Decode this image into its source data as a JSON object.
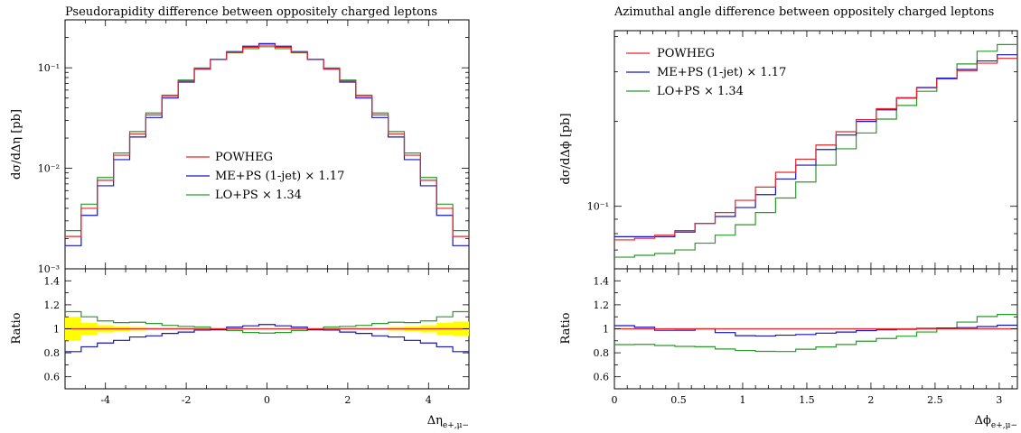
{
  "chart_data": [
    {
      "type": "line",
      "title": "Pseudorapidity difference between oppositely charged leptons",
      "ylabel": "dσ/dΔη [pb]",
      "xlabel": "Δη",
      "xlabel_sub": "e+,μ−",
      "ratio_ylabel": "Ratio",
      "xlim": [
        -5,
        5
      ],
      "ylim": [
        0.001,
        0.3
      ],
      "ylog": true,
      "ratio_ylim": [
        0.5,
        1.5
      ],
      "x_ticks": [
        -4,
        -2,
        0,
        2,
        4
      ],
      "x_tick_labels": [
        "-4",
        "-2",
        "0",
        "2",
        "4"
      ],
      "y_ticks": [
        0.001,
        0.01,
        0.1
      ],
      "y_tick_labels": [
        "10⁻³",
        "10⁻²",
        "10⁻¹"
      ],
      "ratio_ticks": [
        0.6,
        0.8,
        1,
        1.2,
        1.4
      ],
      "ratio_tick_labels": [
        "0.6",
        "0.8",
        "1",
        "1.2",
        "1.4"
      ],
      "legend_position": "center",
      "bin_edges": [
        -5,
        -4.6,
        -4.2,
        -3.8,
        -3.4,
        -3,
        -2.6,
        -2.2,
        -1.8,
        -1.4,
        -1,
        -0.6,
        -0.2,
        0.2,
        0.6,
        1,
        1.4,
        1.8,
        2.2,
        2.6,
        3,
        3.4,
        3.8,
        4.2,
        4.6,
        5
      ],
      "series": [
        {
          "name": "POWHEG",
          "color": "#e8262a",
          "values": [
            0.0021,
            0.004,
            0.0076,
            0.0135,
            0.022,
            0.034,
            0.052,
            0.074,
            0.098,
            0.122,
            0.143,
            0.16,
            0.168,
            0.16,
            0.143,
            0.122,
            0.098,
            0.074,
            0.052,
            0.034,
            0.022,
            0.0135,
            0.0076,
            0.004,
            0.0021
          ]
        },
        {
          "name": "ME+PS (1-jet) × 1.17",
          "color": "#1414c8",
          "values": [
            0.0017,
            0.0034,
            0.0067,
            0.0122,
            0.0205,
            0.032,
            0.05,
            0.072,
            0.097,
            0.121,
            0.145,
            0.164,
            0.174,
            0.164,
            0.145,
            0.121,
            0.097,
            0.072,
            0.05,
            0.032,
            0.0205,
            0.0122,
            0.0067,
            0.0034,
            0.0017
          ]
        },
        {
          "name": "LO+PS × 1.34",
          "color": "#2a9a2a",
          "values": [
            0.0024,
            0.0044,
            0.0081,
            0.0142,
            0.0232,
            0.0355,
            0.0535,
            0.0755,
            0.0995,
            0.122,
            0.141,
            0.155,
            0.162,
            0.155,
            0.141,
            0.122,
            0.0995,
            0.0755,
            0.0535,
            0.0355,
            0.0232,
            0.0142,
            0.0081,
            0.0044,
            0.0024
          ]
        }
      ],
      "ratio_band": {
        "color": "#ffff00",
        "low": [
          0.9,
          0.95,
          0.97,
          0.98,
          0.985,
          0.99,
          0.99,
          0.99,
          0.995,
          0.995,
          0.995,
          0.995,
          0.995,
          0.995,
          0.995,
          0.995,
          0.995,
          0.99,
          0.99,
          0.99,
          0.985,
          0.98,
          0.97,
          0.95,
          0.94
        ],
        "high": [
          1.1,
          1.05,
          1.03,
          1.02,
          1.015,
          1.01,
          1.01,
          1.01,
          1.005,
          1.005,
          1.005,
          1.005,
          1.005,
          1.005,
          1.005,
          1.005,
          1.005,
          1.01,
          1.01,
          1.01,
          1.015,
          1.02,
          1.03,
          1.05,
          1.06
        ]
      }
    },
    {
      "type": "line",
      "title": "Azimuthal angle difference between oppositely charged leptons",
      "ylabel": "dσ/dΔϕ [pb]",
      "xlabel": "Δϕ",
      "xlabel_sub": "e+,μ−",
      "ratio_ylabel": "Ratio",
      "xlim": [
        0,
        3.1416
      ],
      "ylim": [
        0.06,
        0.42
      ],
      "ylog": true,
      "ratio_ylim": [
        0.5,
        1.5
      ],
      "x_ticks": [
        0,
        0.5,
        1,
        1.5,
        2,
        2.5,
        3
      ],
      "x_tick_labels": [
        "0",
        "0.5",
        "1",
        "1.5",
        "2",
        "2.5",
        "3"
      ],
      "y_ticks": [
        0.1
      ],
      "y_tick_labels": [
        "10⁻¹"
      ],
      "ratio_ticks": [
        0.6,
        0.8,
        1,
        1.2,
        1.4
      ],
      "ratio_tick_labels": [
        "0.6",
        "0.8",
        "1",
        "1.2",
        "1.4"
      ],
      "legend_position": "top-left",
      "bin_edges": [
        0,
        0.1571,
        0.3142,
        0.4712,
        0.6283,
        0.7854,
        0.9425,
        1.0996,
        1.2566,
        1.4137,
        1.5708,
        1.7279,
        1.885,
        2.042,
        2.1991,
        2.3562,
        2.5133,
        2.6704,
        2.8274,
        2.9845,
        3.1416
      ],
      "series": [
        {
          "name": "POWHEG",
          "color": "#e8262a",
          "values": [
            0.076,
            0.077,
            0.079,
            0.082,
            0.087,
            0.095,
            0.105,
            0.117,
            0.132,
            0.147,
            0.165,
            0.184,
            0.203,
            0.222,
            0.243,
            0.263,
            0.283,
            0.303,
            0.322,
            0.335
          ]
        },
        {
          "name": "ME+PS (1-jet) × 1.17",
          "color": "#1414c8",
          "values": [
            0.078,
            0.078,
            0.078,
            0.081,
            0.087,
            0.092,
            0.099,
            0.11,
            0.125,
            0.14,
            0.159,
            0.179,
            0.2,
            0.22,
            0.242,
            0.264,
            0.285,
            0.306,
            0.328,
            0.345
          ]
        },
        {
          "name": "LO+PS × 1.34",
          "color": "#2a9a2a",
          "values": [
            0.066,
            0.067,
            0.068,
            0.07,
            0.074,
            0.079,
            0.086,
            0.095,
            0.107,
            0.122,
            0.14,
            0.16,
            0.182,
            0.204,
            0.228,
            0.256,
            0.285,
            0.32,
            0.355,
            0.375
          ]
        }
      ],
      "ratio_band": {
        "color": "#ffff00",
        "low": [
          0.995,
          0.995,
          0.995,
          0.995,
          0.995,
          0.995,
          0.995,
          0.995,
          0.995,
          0.995,
          0.995,
          0.995,
          0.995,
          0.995,
          0.995,
          0.995,
          0.995,
          0.995,
          0.995,
          0.995
        ],
        "high": [
          1.005,
          1.005,
          1.005,
          1.005,
          1.005,
          1.005,
          1.005,
          1.005,
          1.005,
          1.005,
          1.005,
          1.005,
          1.005,
          1.005,
          1.005,
          1.005,
          1.005,
          1.005,
          1.005,
          1.005
        ]
      }
    }
  ]
}
